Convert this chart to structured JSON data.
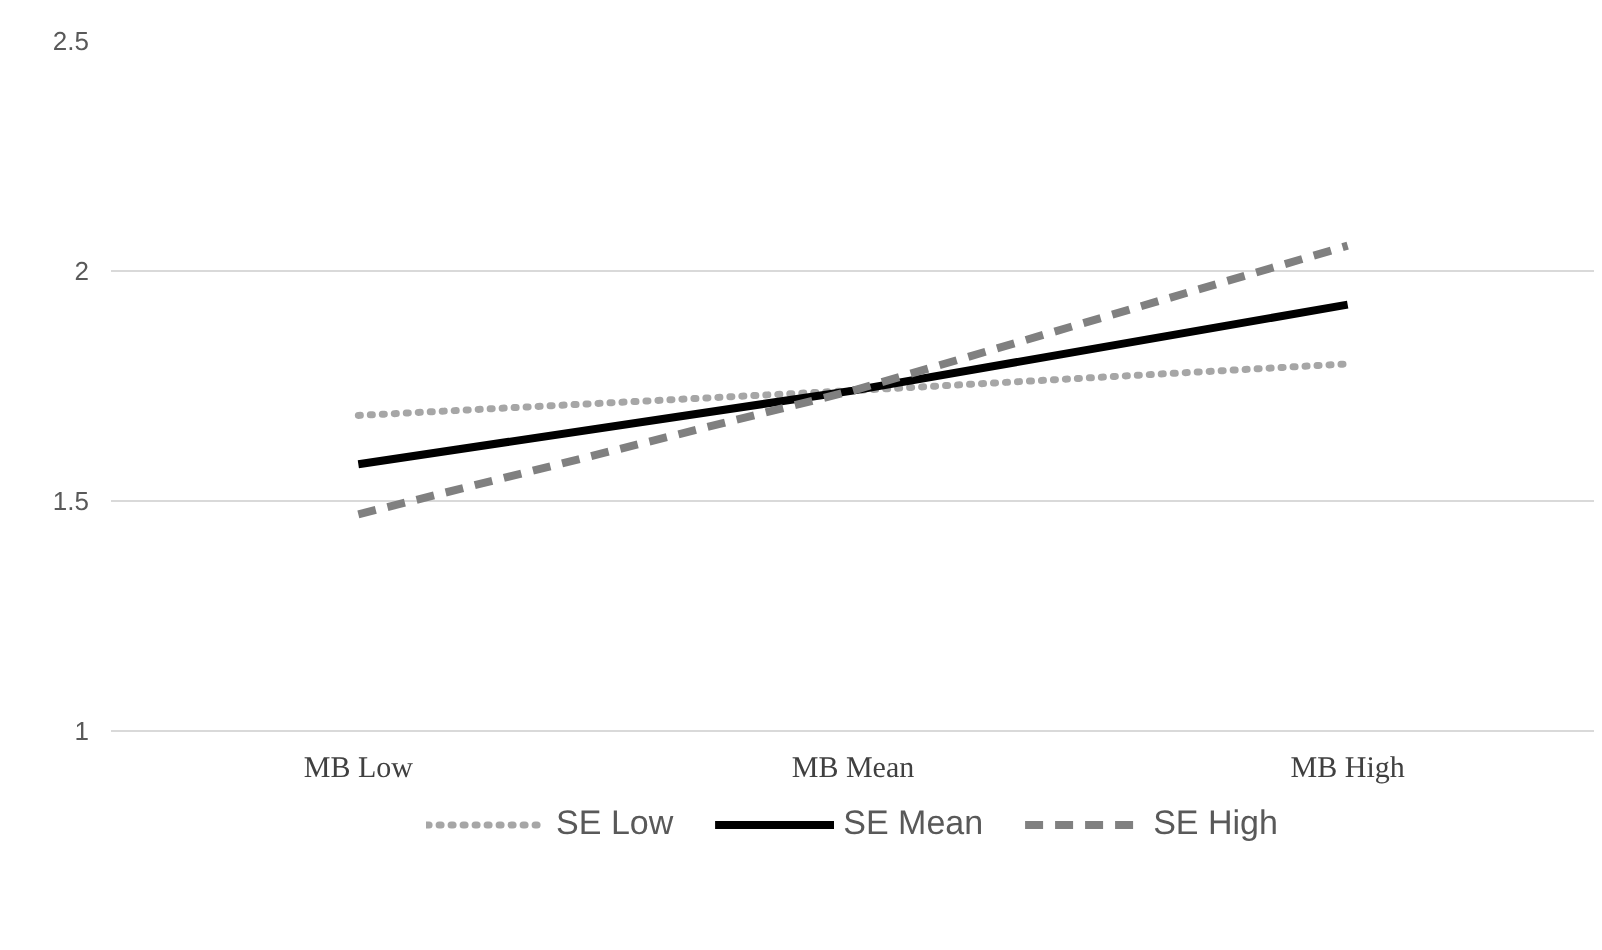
{
  "chart_data": {
    "type": "line",
    "categories": [
      "MB Low",
      "MB Mean",
      "MB High"
    ],
    "series": [
      {
        "name": "SE Low",
        "color": "#a6a6a6",
        "line_style": "dotted",
        "values": [
          1.686,
          1.74,
          1.798
        ]
      },
      {
        "name": "SE Mean",
        "color": "#000000",
        "line_style": "solid",
        "values": [
          1.58,
          1.74,
          1.927
        ]
      },
      {
        "name": "SE High",
        "color": "#808080",
        "line_style": "dashed",
        "values": [
          1.471,
          1.74,
          2.055
        ]
      }
    ],
    "ylim": [
      1,
      2.5
    ],
    "yticks": [
      1,
      1.5,
      2,
      2.5
    ],
    "grid": "y",
    "legend": "bottom",
    "marker": "none"
  }
}
